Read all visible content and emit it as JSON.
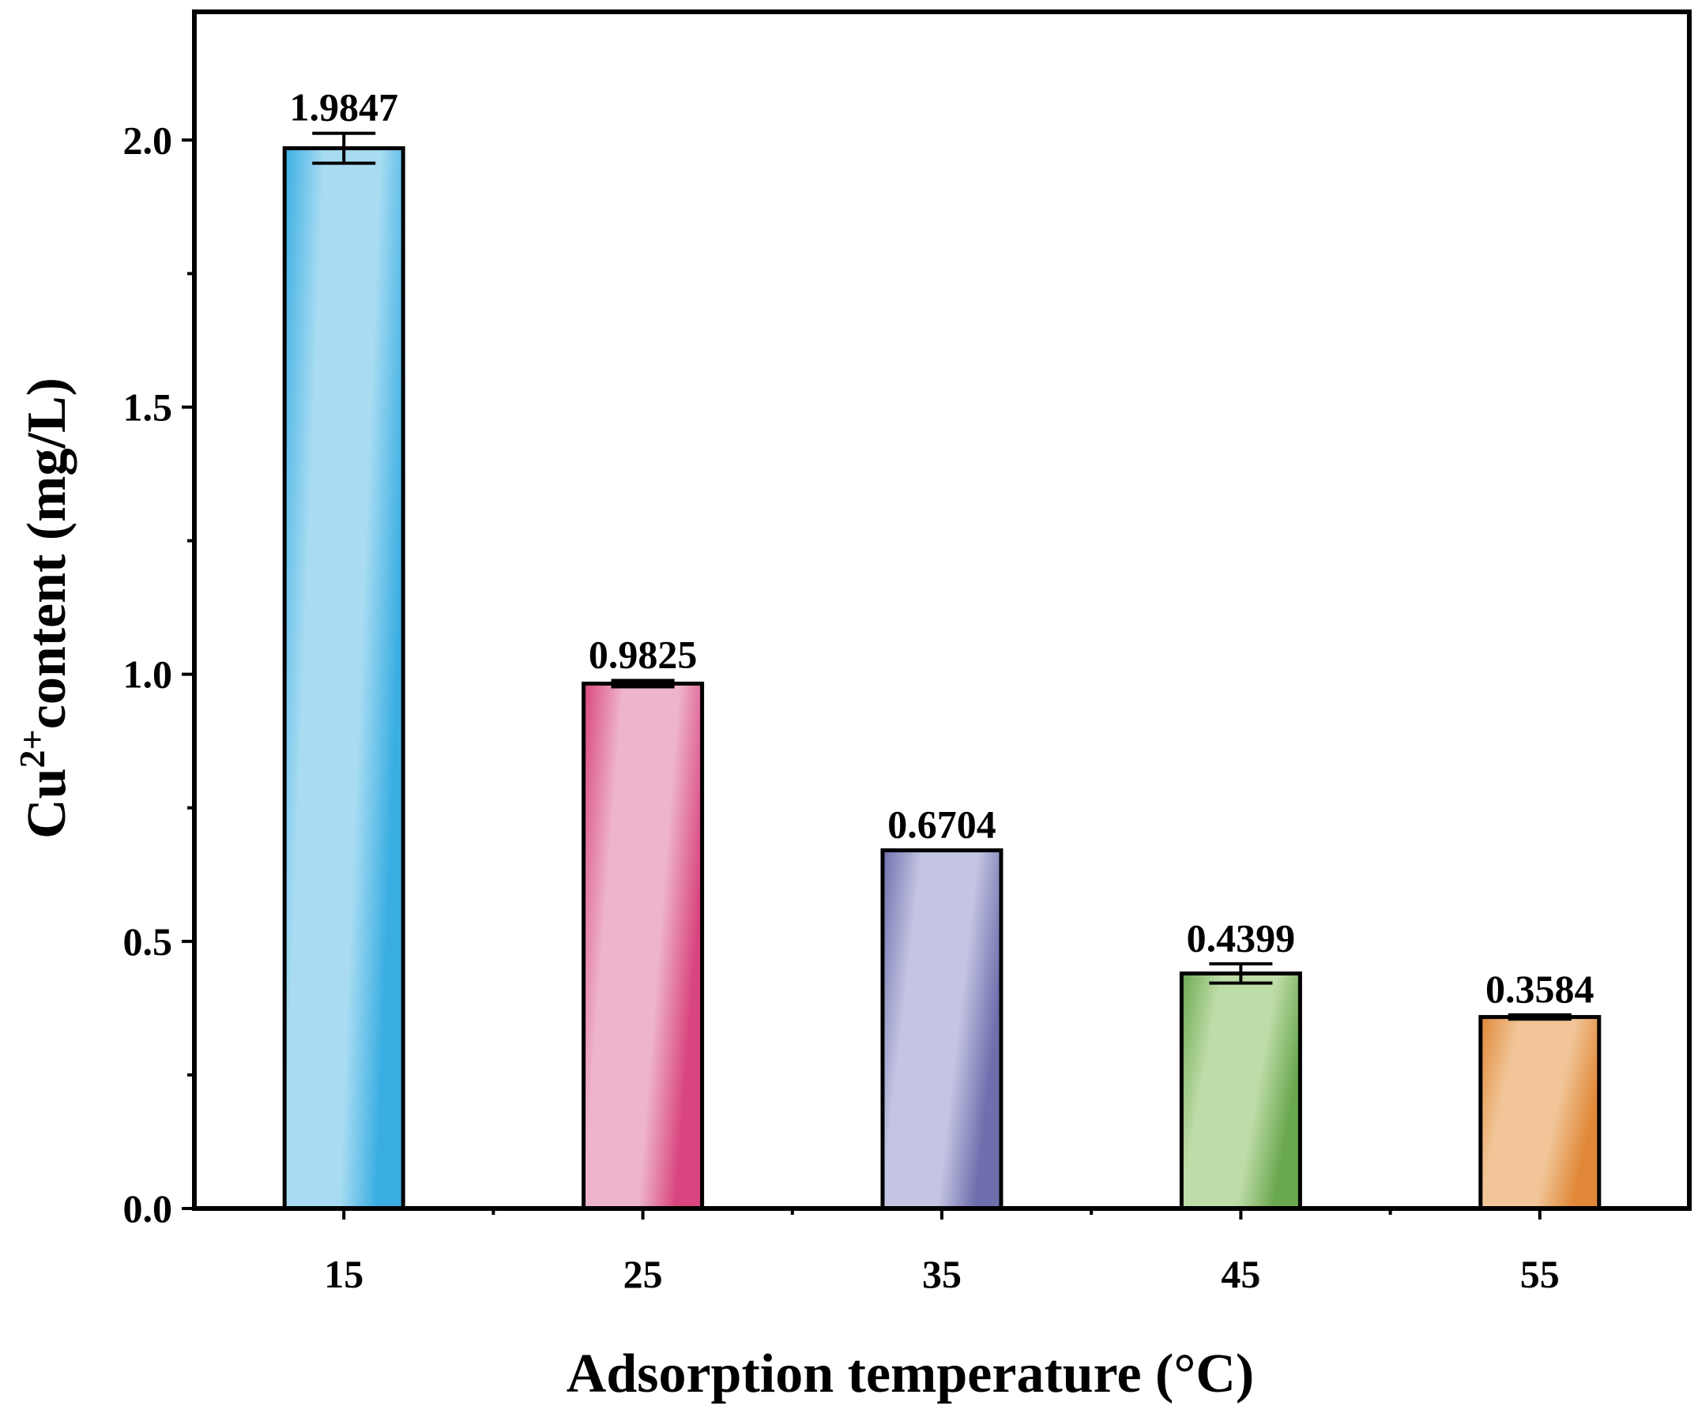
{
  "chart_data": {
    "type": "bar",
    "title": "",
    "xlabel": "Adsorption temperature (°C)",
    "ylabel": {
      "prefix": "Cu",
      "superscript": "2+",
      "suffix": "content (mg/L)"
    },
    "categories": [
      "15",
      "25",
      "35",
      "45",
      "55"
    ],
    "values": [
      1.9847,
      0.9825,
      0.6704,
      0.4399,
      0.3584
    ],
    "value_labels": [
      "1.9847",
      "0.9825",
      "0.6704",
      "0.4399",
      "0.3584"
    ],
    "errors": [
      0.028,
      0.006,
      0.0,
      0.018,
      0.004
    ],
    "ylim": [
      0,
      2.24
    ],
    "yticks": [
      0.0,
      0.5,
      1.0,
      1.5,
      2.0
    ],
    "ytick_labels": [
      "0.0",
      "0.5",
      "1.0",
      "1.5",
      "2.0"
    ],
    "grid": false,
    "bar_colors": [
      {
        "dark": "#3aaee2",
        "light": "#a9dcf3"
      },
      {
        "dark": "#d9457e",
        "light": "#eeb4cc"
      },
      {
        "dark": "#6f6fae",
        "light": "#c4c5e2"
      },
      {
        "dark": "#6aa84f",
        "light": "#bedca8"
      },
      {
        "dark": "#e08838",
        "light": "#f1c597"
      }
    ]
  }
}
